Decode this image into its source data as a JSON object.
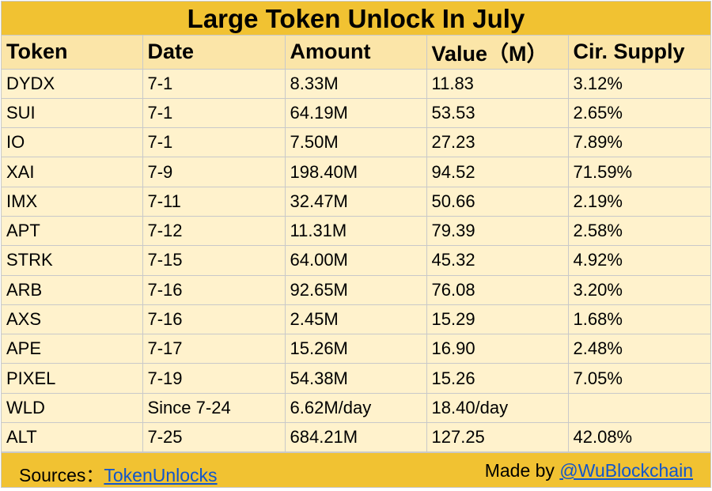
{
  "title": "Large Token Unlock In July",
  "columns": [
    "Token",
    "Date",
    "Amount",
    "Value（M）",
    "Cir. Supply"
  ],
  "rows": [
    {
      "token": "DYDX",
      "date": "7-1",
      "amount": "8.33M",
      "value": "11.83",
      "supply": "3.12%"
    },
    {
      "token": "SUI",
      "date": "7-1",
      "amount": "64.19M",
      "value": "53.53",
      "supply": "2.65%"
    },
    {
      "token": "IO",
      "date": "7-1",
      "amount": "7.50M",
      "value": "27.23",
      "supply": "7.89%"
    },
    {
      "token": "XAI",
      "date": "7-9",
      "amount": "198.40M",
      "value": "94.52",
      "supply": "71.59%"
    },
    {
      "token": "IMX",
      "date": "7-11",
      "amount": "32.47M",
      "value": "50.66",
      "supply": "2.19%"
    },
    {
      "token": "APT",
      "date": "7-12",
      "amount": "11.31M",
      "value": "79.39",
      "supply": "2.58%"
    },
    {
      "token": "STRK",
      "date": "7-15",
      "amount": "64.00M",
      "value": "45.32",
      "supply": "4.92%"
    },
    {
      "token": "ARB",
      "date": "7-16",
      "amount": "92.65M",
      "value": "76.08",
      "supply": "3.20%"
    },
    {
      "token": "AXS",
      "date": "7-16",
      "amount": "2.45M",
      "value": "15.29",
      "supply": "1.68%"
    },
    {
      "token": "APE",
      "date": "7-17",
      "amount": "15.26M",
      "value": "16.90",
      "supply": "2.48%"
    },
    {
      "token": "PIXEL",
      "date": "7-19",
      "amount": "54.38M",
      "value": "15.26",
      "supply": "7.05%"
    },
    {
      "token": "WLD",
      "date": "Since 7-24",
      "amount": "6.62M/day",
      "value": "18.40/day",
      "supply": ""
    },
    {
      "token": "ALT",
      "date": "7-25",
      "amount": "684.21M",
      "value": "127.25",
      "supply": "42.08%"
    }
  ],
  "footer": {
    "sources_label": "Sources：",
    "sources_link": "TokenUnlocks",
    "made_by_label": "Made by ",
    "made_by_link": "@WuBlockchain"
  },
  "colors": {
    "header_gold": "#f1c232",
    "column_header": "#fbe5a8",
    "cell_bg": "#fff2cc",
    "link_blue": "#1155cc"
  }
}
